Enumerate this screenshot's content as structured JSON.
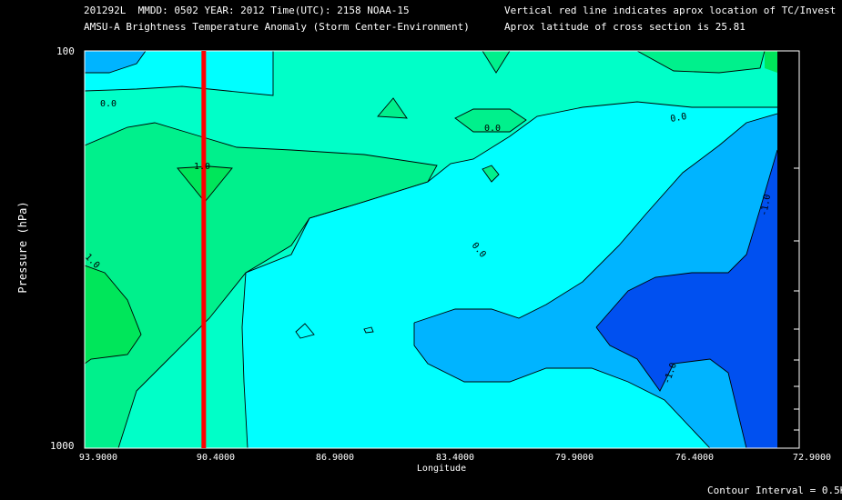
{
  "header": {
    "line1": "201292L  MMDD: 0502 YEAR: 2012 Time(UTC): 2158 NOAA-15",
    "line2": "AMSU-A Brightness Temperature Anomaly (Storm Center-Environment)",
    "line3": "Vertical red line indicates aprox location of TC/Invest",
    "line4": "Aprox latitude of cross section is 25.81"
  },
  "footer": {
    "contour_interval": "Contour Interval = 0.5K"
  },
  "chart_data": {
    "type": "heatmap",
    "xlabel": "Longitude",
    "ylabel": "Pressure (hPa)",
    "x_ticks": [
      "93.9000",
      "90.4000",
      "86.9000",
      "83.4000",
      "79.9000",
      "76.4000",
      "72.9000"
    ],
    "y_ticks": [
      "100",
      "1000"
    ],
    "xlim": [
      93.9,
      72.9
    ],
    "ylim": [
      1000,
      100
    ],
    "y_scale": "log",
    "storm_line_longitude": 90.4,
    "contour_labels": [
      "0.0",
      "0.0",
      "0.0",
      "0.0",
      "1.0",
      "1.0",
      "-1.0",
      "-1.0"
    ],
    "colors": {
      "storm_line": "#ff0000",
      "level_minus_1_5": "#0050f0",
      "level_minus_1_0": "#00b4ff",
      "level_minus_0_5": "#00ffff",
      "level_0_0": "#00ffc8",
      "level_0_5": "#00f08c",
      "level_1_0": "#00e65a"
    }
  }
}
